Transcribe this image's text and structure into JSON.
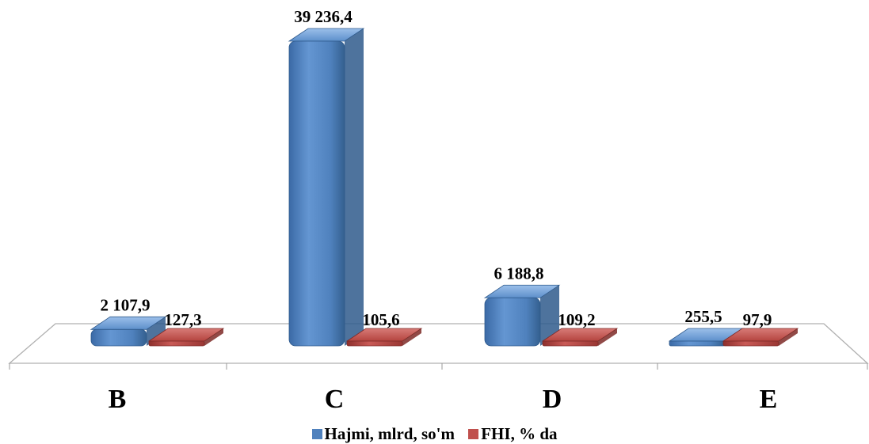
{
  "chart_data": {
    "type": "bar",
    "categories": [
      "B",
      "C",
      "D",
      "E"
    ],
    "series": [
      {
        "name": "Hajmi, mlrd, so'm",
        "values": [
          2107.9,
          39236.4,
          6188.8,
          255.5
        ],
        "labels": [
          "2 107,9",
          "39 236,4",
          "6 188,8",
          "255,5"
        ],
        "color": "#4f81bd"
      },
      {
        "name": "FHI, % da",
        "values": [
          127.3,
          105.6,
          109.2,
          97.9
        ],
        "labels": [
          "127,3",
          "105,6",
          "109,2",
          "97,9"
        ],
        "color": "#c0504d"
      }
    ],
    "legend_position": "bottom",
    "grid": false
  }
}
